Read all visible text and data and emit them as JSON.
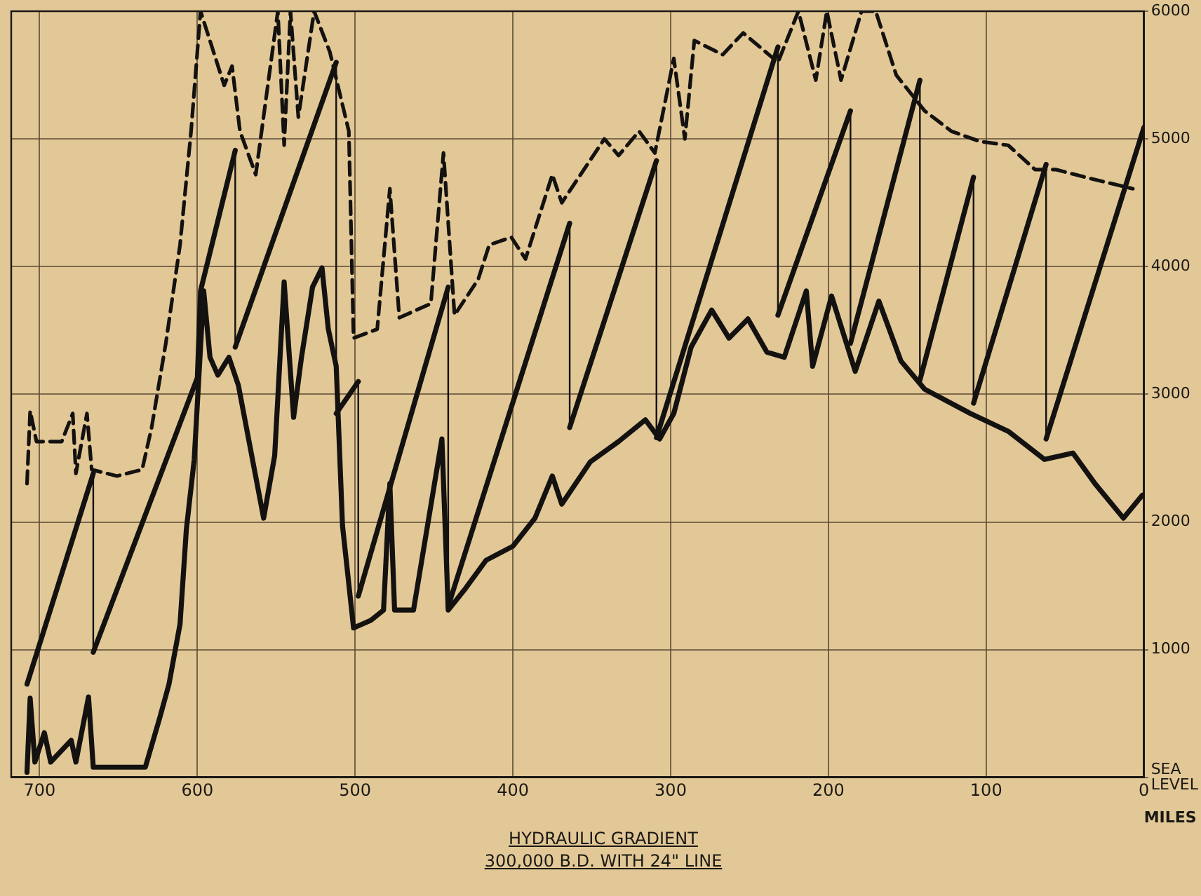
{
  "chart_data": {
    "type": "line",
    "title": "HYDRAULIC GRADIENT",
    "subtitle": "300,000 B.D. WITH 24\" LINE",
    "xlabel": "MILES",
    "xlim": [
      718,
      0
    ],
    "xticks": [
      700,
      600,
      500,
      400,
      300,
      200,
      100,
      0
    ],
    "ylim": [
      0,
      6000
    ],
    "yticks": [
      {
        "value": 0,
        "label": "SEA LEVEL"
      },
      1000,
      2000,
      3000,
      4000,
      5000,
      6000
    ],
    "grid": true,
    "legend": false,
    "marker": "none",
    "series": [
      {
        "color": "#141210",
        "line_style": "solid",
        "x": [
          708,
          706,
          703,
          697,
          693,
          680,
          677,
          669,
          666,
          633,
          624,
          618,
          611,
          607,
          602,
          596,
          592,
          587,
          580,
          574,
          558,
          551,
          545,
          539,
          534,
          527,
          521,
          517,
          512,
          508,
          501,
          490,
          482,
          478,
          475,
          463,
          445,
          441,
          430,
          417,
          400,
          386,
          375,
          369,
          351,
          333,
          316,
          307,
          298,
          287,
          274,
          263,
          251,
          239,
          228,
          214,
          210,
          198,
          183,
          168,
          154,
          139,
          110,
          86,
          63,
          45,
          31,
          13,
          1
        ],
        "values": [
          40,
          620,
          120,
          350,
          120,
          290,
          120,
          630,
          80,
          80,
          460,
          730,
          1200,
          1940,
          2490,
          3810,
          3290,
          3150,
          3290,
          3070,
          2030,
          2520,
          3880,
          2820,
          3290,
          3840,
          3990,
          3510,
          3220,
          1970,
          1170,
          1230,
          1310,
          2300,
          1310,
          1310,
          2650,
          1310,
          1480,
          1700,
          1810,
          2030,
          2360,
          2140,
          2470,
          2630,
          2800,
          2650,
          2850,
          3370,
          3660,
          3440,
          3590,
          3330,
          3290,
          3810,
          3220,
          3770,
          3180,
          3730,
          3260,
          3040,
          2850,
          2710,
          2490,
          2540,
          2300,
          2030,
          2210
        ]
      },
      {
        "color": "#141210",
        "line_style": "dashed",
        "x": [
          708,
          706,
          702,
          686,
          679,
          677,
          670,
          667,
          651,
          635,
          629,
          620,
          611,
          604,
          598,
          583,
          578,
          573,
          563,
          549,
          545,
          541,
          536,
          526,
          516,
          504,
          501,
          486,
          478,
          472,
          452,
          444,
          437,
          422,
          415,
          401,
          392,
          375,
          369,
          342,
          333,
          320,
          310,
          298,
          291,
          285,
          267,
          254,
          232,
          219,
          208,
          201,
          192,
          179,
          170,
          157,
          139,
          122,
          104,
          86,
          69,
          56,
          34,
          7
        ],
        "values": [
          2300,
          2870,
          2630,
          2630,
          2850,
          2380,
          2850,
          2410,
          2360,
          2410,
          2740,
          3400,
          4170,
          5060,
          6000,
          5420,
          5570,
          5060,
          4720,
          6000,
          4950,
          6000,
          5170,
          6000,
          5680,
          5060,
          3440,
          3510,
          4610,
          3600,
          3710,
          4890,
          3620,
          3900,
          4170,
          4230,
          4060,
          4720,
          4500,
          5000,
          4870,
          5060,
          4890,
          5630,
          5000,
          5770,
          5660,
          5830,
          5600,
          6000,
          5460,
          6000,
          5460,
          6000,
          6000,
          5500,
          5220,
          5060,
          4980,
          4950,
          4760,
          4760,
          4690,
          4610
        ]
      },
      {
        "color": "#141210",
        "line_style": "solid",
        "x": [
          708,
          666,
          666,
          600,
          598,
          576,
          576,
          512,
          512,
          498,
          498,
          441,
          441,
          364,
          364,
          309,
          309,
          232,
          232,
          186,
          186,
          142,
          142,
          108,
          108,
          62,
          62,
          0
        ],
        "values": [
          730,
          2380,
          980,
          3130,
          3810,
          4910,
          3370,
          5600,
          2850,
          3100,
          1420,
          3840,
          1340,
          4340,
          2740,
          4830,
          2660,
          5720,
          3620,
          5220,
          3400,
          5460,
          3110,
          4700,
          2930,
          4800,
          2650,
          5090
        ]
      }
    ]
  }
}
